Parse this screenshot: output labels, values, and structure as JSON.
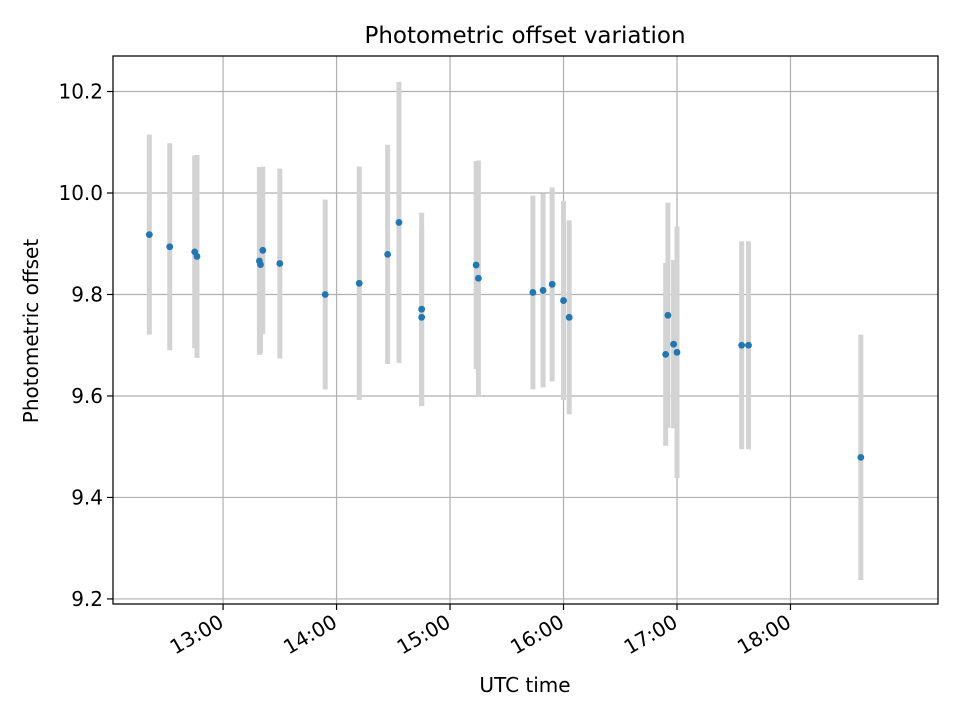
{
  "chart_data": {
    "type": "scatter",
    "title": "Photometric offset variation",
    "xlabel": "UTC time",
    "ylabel": "Photometric offset",
    "x_unit": "hours UTC",
    "xlim": [
      12.03,
      19.3
    ],
    "ylim": [
      9.19,
      10.27
    ],
    "x_ticks": [
      {
        "value": 13,
        "label": "13:00"
      },
      {
        "value": 14,
        "label": "14:00"
      },
      {
        "value": 15,
        "label": "15:00"
      },
      {
        "value": 16,
        "label": "16:00"
      },
      {
        "value": 17,
        "label": "17:00"
      },
      {
        "value": 18,
        "label": "18:00"
      }
    ],
    "y_ticks": [
      {
        "value": 9.2,
        "label": "9.2"
      },
      {
        "value": 9.4,
        "label": "9.4"
      },
      {
        "value": 9.6,
        "label": "9.6"
      },
      {
        "value": 9.8,
        "label": "9.8"
      },
      {
        "value": 10.0,
        "label": "10.0"
      },
      {
        "value": 10.2,
        "label": "10.2"
      }
    ],
    "grid": true,
    "colors": {
      "point": "#1f77b4",
      "errorbar": "#d3d3d3",
      "grid": "#b0b0b0",
      "axes": "#000000"
    },
    "series": [
      {
        "points": [
          {
            "x": 12.35,
            "y": 9.918,
            "err": 0.197
          },
          {
            "x": 12.53,
            "y": 9.894,
            "err": 0.204
          },
          {
            "x": 12.75,
            "y": 9.884,
            "err": 0.19
          },
          {
            "x": 12.77,
            "y": 9.875,
            "err": 0.2
          },
          {
            "x": 13.32,
            "y": 9.866,
            "err": 0.185
          },
          {
            "x": 13.33,
            "y": 9.859,
            "err": 0.175
          },
          {
            "x": 13.35,
            "y": 9.887,
            "err": 0.165
          },
          {
            "x": 13.5,
            "y": 9.861,
            "err": 0.187
          },
          {
            "x": 13.9,
            "y": 9.8,
            "err": 0.187
          },
          {
            "x": 14.2,
            "y": 9.822,
            "err": 0.23
          },
          {
            "x": 14.45,
            "y": 9.879,
            "err": 0.216
          },
          {
            "x": 14.55,
            "y": 9.942,
            "err": 0.277
          },
          {
            "x": 14.75,
            "y": 9.755,
            "err": 0.175
          },
          {
            "x": 14.75,
            "y": 9.771,
            "err": 0.19
          },
          {
            "x": 15.23,
            "y": 9.858,
            "err": 0.205
          },
          {
            "x": 15.25,
            "y": 9.832,
            "err": 0.232
          },
          {
            "x": 15.73,
            "y": 9.804,
            "err": 0.191
          },
          {
            "x": 15.82,
            "y": 9.808,
            "err": 0.191
          },
          {
            "x": 15.9,
            "y": 9.82,
            "err": 0.191
          },
          {
            "x": 16.0,
            "y": 9.788,
            "err": 0.196
          },
          {
            "x": 16.05,
            "y": 9.755,
            "err": 0.191
          },
          {
            "x": 16.9,
            "y": 9.682,
            "err": 0.18
          },
          {
            "x": 16.92,
            "y": 9.759,
            "err": 0.222
          },
          {
            "x": 16.97,
            "y": 9.702,
            "err": 0.166
          },
          {
            "x": 17.0,
            "y": 9.686,
            "err": 0.248
          },
          {
            "x": 17.57,
            "y": 9.7,
            "err": 0.205
          },
          {
            "x": 17.63,
            "y": 9.7,
            "err": 0.205
          },
          {
            "x": 18.62,
            "y": 9.479,
            "err": 0.242
          }
        ]
      }
    ]
  }
}
